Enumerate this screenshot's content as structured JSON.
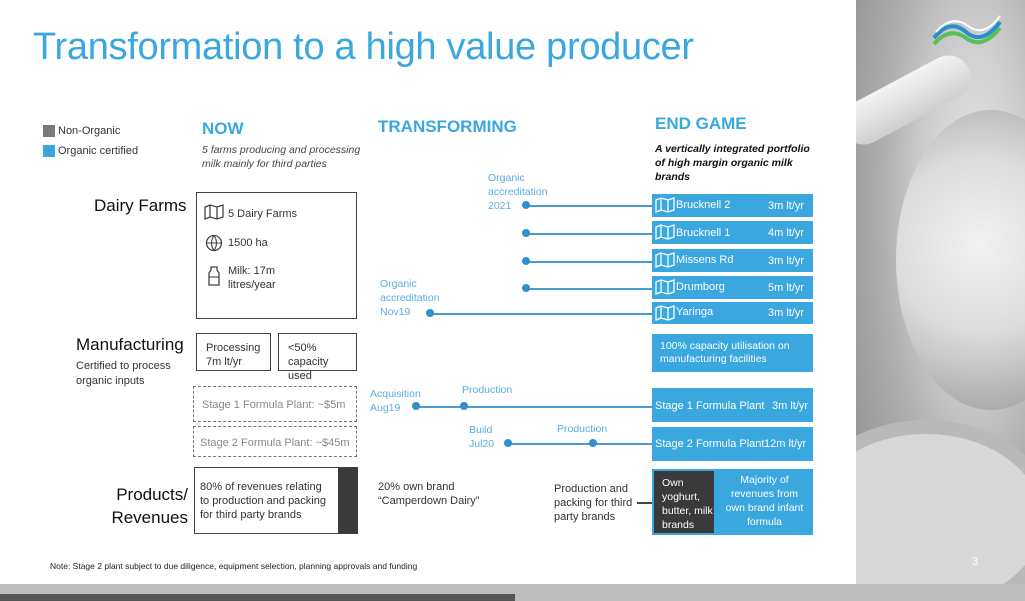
{
  "title": "Transformation to a high value producer",
  "legend": [
    {
      "label": "Non-Organic",
      "color": "#7a7a7a"
    },
    {
      "label": "Organic certified",
      "color": "#3aa7df"
    }
  ],
  "columns": {
    "now": "NOW",
    "transforming": "TRANSFORMING",
    "end_game": "END GAME"
  },
  "now_note": "5 farms producing and processing milk mainly for third parties",
  "end_note": "A vertically integrated portfolio of high margin organic milk brands",
  "dairy": {
    "label": "Dairy Farms",
    "farms": "5 Dairy Farms",
    "area": "1500 ha",
    "milk": "Milk: 17m litres/year"
  },
  "manufacturing": {
    "label": "Manufacturing",
    "sub": "Certified to process organic inputs",
    "processing": "Processing 7m lt/yr",
    "capacity": "<50% capacity used",
    "stage1_now": "Stage 1 Formula Plant: ~$5m",
    "stage2_now": "Stage 2 Formula Plant: ~$45m"
  },
  "products": {
    "label": "Products/ Revenues",
    "now_text": "80% of revenues relating to production and packing for third party brands",
    "own_brand": "20% own brand “Camperdown Dairy”",
    "third_party": "Production and packing for third party brands",
    "own_yoghurt": "Own yoghurt, butter, milk brands",
    "majority": "Majority of revenues from own brand infant formula"
  },
  "transforming": {
    "organic_2021": "Organic accreditation 2021",
    "organic_nov19": "Organic accreditation Nov19",
    "acquisition": "Acquisition Aug19",
    "production1": "Production",
    "build": "Build Jul20",
    "production2": "Production"
  },
  "end_farms": [
    {
      "name": "Brucknell 2",
      "value": "3m lt/yr"
    },
    {
      "name": "Brucknell 1",
      "value": "4m lt/yr"
    },
    {
      "name": "Missens Rd",
      "value": "3m lt/yr"
    },
    {
      "name": "Drumborg",
      "value": "5m lt/yr"
    },
    {
      "name": "Yaringa",
      "value": "3m lt/yr"
    }
  ],
  "end_capacity": "100% capacity utilisation on manufacturing facilities",
  "end_stage1": {
    "name": "Stage 1 Formula Plant",
    "value": "3m lt/yr"
  },
  "end_stage2": {
    "name": "Stage 2 Formula Plant",
    "value": "12m lt/yr"
  },
  "footnote": "Note: Stage 2 plant subject to due diligence, equipment selection, planning approvals and funding",
  "page_number": "3"
}
